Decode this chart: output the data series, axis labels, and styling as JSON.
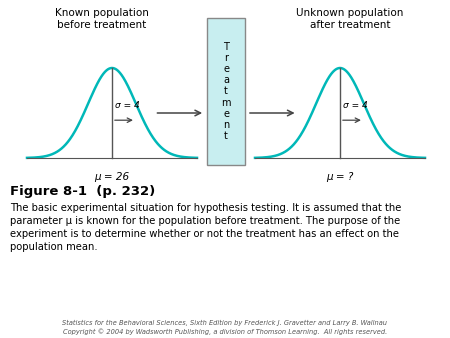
{
  "bg_color": "#ffffff",
  "curve_color": "#00b8b8",
  "curve_linewidth": 1.8,
  "line_color": "#555555",
  "arrow_color": "#444444",
  "box_color": "#c8eef0",
  "box_edge_color": "#888888",
  "left_title": "Known population\nbefore treatment",
  "right_title": "Unknown population\nafter treatment",
  "treatment_text": "T\nr\ne\na\nt\nm\ne\nn\nt",
  "left_mu": "μ = 26",
  "right_mu": "μ = ?",
  "sigma_label": "σ = 4",
  "figure_label": "Figure 8-1  (p. 232)",
  "caption_line1": "The basic experimental situation for hypothesis testing. It is assumed that the",
  "caption_line2": "parameter μ is known for the population before treatment. The purpose of the",
  "caption_line3": "experiment is to determine whether or not the treatment has an effect on the",
  "caption_line4": "population mean.",
  "copyright_line1": "Statistics for the Behavioral Sciences, Sixth Edition by Frederick J. Gravetter and Larry B. Wallnau",
  "copyright_line2": "Copyright © 2004 by Wadsworth Publishing, a division of Thomson Learning.  All rights reserved."
}
